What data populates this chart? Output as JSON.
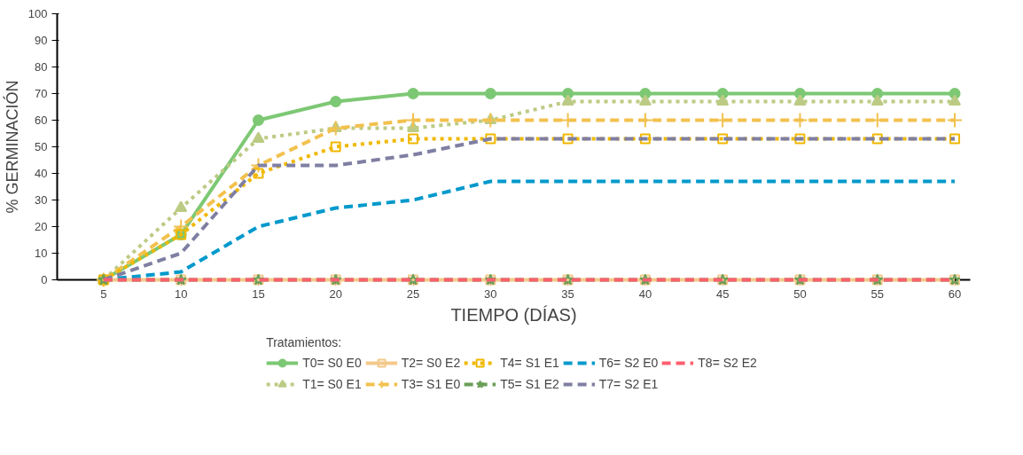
{
  "chart_data": {
    "type": "line",
    "xlabel": "TIEMPO (DÍAS)",
    "ylabel": "% GERMINACIÓN",
    "legend_title": "Tratamientos:",
    "legend": "bottom",
    "grid": false,
    "x": [
      5,
      10,
      15,
      20,
      25,
      30,
      35,
      40,
      45,
      50,
      55,
      60
    ],
    "xlim": [
      2,
      61
    ],
    "xticks": [
      5,
      10,
      15,
      20,
      25,
      30,
      35,
      40,
      45,
      50,
      55,
      60
    ],
    "ylim": [
      0,
      100
    ],
    "yticks": [
      0,
      10,
      20,
      30,
      40,
      50,
      60,
      70,
      80,
      90,
      100
    ],
    "series": [
      {
        "name": "T0= S0 E0",
        "color": "#7dc874",
        "marker": "circle",
        "line_style": "solid",
        "values": [
          0,
          17,
          60,
          67,
          70,
          70,
          70,
          70,
          70,
          70,
          70,
          70
        ]
      },
      {
        "name": "T1= S0 E1",
        "color": "#bccb84",
        "marker": "triangle",
        "line_style": "dotted",
        "values": [
          0,
          27,
          53,
          57,
          57,
          60,
          67,
          67,
          67,
          67,
          67,
          67
        ]
      },
      {
        "name": "T2= S0 E2",
        "color": "#f3c98a",
        "marker": "square",
        "line_style": "solid",
        "values": [
          0,
          0,
          0,
          0,
          0,
          0,
          0,
          0,
          0,
          0,
          0,
          0
        ]
      },
      {
        "name": "T3= S1 E0",
        "color": "#f2c14e",
        "marker": "cross",
        "line_style": "dashed",
        "values": [
          0,
          20,
          43,
          57,
          60,
          60,
          60,
          60,
          60,
          60,
          60,
          60
        ]
      },
      {
        "name": "T4= S1 E1",
        "color": "#f0b800",
        "marker": "square",
        "line_style": "dotted",
        "values": [
          0,
          17,
          40,
          50,
          53,
          53,
          53,
          53,
          53,
          53,
          53,
          53
        ]
      },
      {
        "name": "T5= S1 E2",
        "color": "#6a9f57",
        "marker": "star",
        "line_style": "dashed",
        "values": [
          0,
          0,
          0,
          0,
          0,
          0,
          0,
          0,
          0,
          0,
          0,
          0
        ]
      },
      {
        "name": "T6= S2 E0",
        "color": "#0099cc",
        "marker": "none",
        "line_style": "dashed",
        "values": [
          0,
          3,
          20,
          27,
          30,
          37,
          37,
          37,
          37,
          37,
          37,
          37
        ]
      },
      {
        "name": "T7= S2 E1",
        "color": "#7f7fa3",
        "marker": "none",
        "line_style": "dashed",
        "values": [
          0,
          10,
          43,
          43,
          47,
          53,
          53,
          53,
          53,
          53,
          53,
          53
        ]
      },
      {
        "name": "T8= S2 E2",
        "color": "#ff6070",
        "marker": "none",
        "line_style": "dashed",
        "values": [
          0,
          0,
          0,
          0,
          0,
          0,
          0,
          0,
          0,
          0,
          0,
          0
        ]
      }
    ]
  }
}
